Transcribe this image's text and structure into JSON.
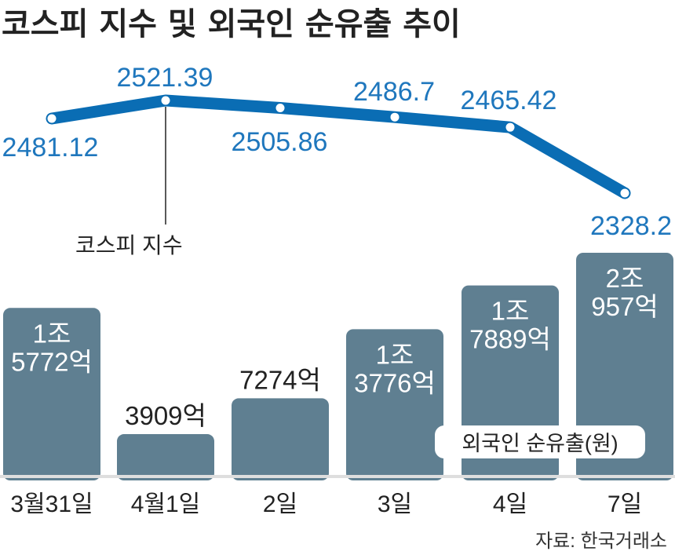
{
  "title": "코스피 지수 및 외국인 순유출 추이",
  "source": "자료: 한국거래소",
  "line_annotation": "코스피 지수",
  "bar_legend": "외국인 순유출(원)",
  "colors": {
    "line": "#0a6db4",
    "line_label": "#1f77bd",
    "bar": "#5f7f91",
    "axis_base": "#dedede"
  },
  "chart_data": [
    {
      "type": "line",
      "categories": [
        "3월31일",
        "4월1일",
        "2일",
        "3일",
        "4일",
        "7일"
      ],
      "series": [
        {
          "name": "코스피 지수",
          "values": [
            2481.12,
            2521.39,
            2505.86,
            2486.7,
            2465.42,
            2328.2
          ]
        }
      ],
      "labels": [
        "2481.12",
        "2521.39",
        "2505.86",
        "2486.7",
        "2465.42",
        "2328.2"
      ]
    },
    {
      "type": "bar",
      "categories": [
        "3월31일",
        "4월1일",
        "2일",
        "3일",
        "4일",
        "7일"
      ],
      "series": [
        {
          "name": "외국인 순유출(원)",
          "values": [
            15772,
            3909,
            7274,
            13776,
            17889,
            20957
          ]
        }
      ],
      "labels": [
        [
          "1조",
          "5772억"
        ],
        [
          "3909억"
        ],
        [
          "7274억"
        ],
        [
          "1조",
          "3776억"
        ],
        [
          "1조",
          "7889억"
        ],
        [
          "2조",
          "957억"
        ]
      ]
    }
  ]
}
